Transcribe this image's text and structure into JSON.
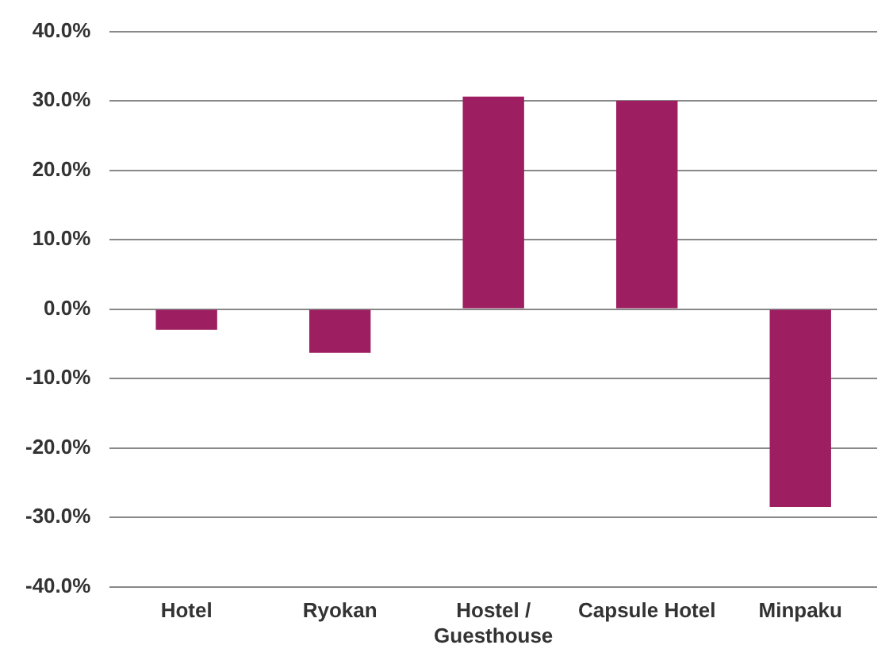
{
  "chart_data": {
    "type": "bar",
    "categories": [
      "Hotel",
      "Ryokan",
      "Hostel / Guesthouse",
      "Capsule Hotel",
      "Minpaku"
    ],
    "values": [
      -3.0,
      -6.3,
      30.6,
      30.0,
      -28.5
    ],
    "color": "#9e1f61",
    "ylim": [
      -40,
      40
    ],
    "yticks": [
      {
        "value": -40,
        "label": "-40.0%"
      },
      {
        "value": -30,
        "label": "-30.0%"
      },
      {
        "value": -20,
        "label": "-20.0%"
      },
      {
        "value": -10,
        "label": "-10.0%"
      },
      {
        "value": 0,
        "label": "0.0%"
      },
      {
        "value": 10,
        "label": "10.0%"
      },
      {
        "value": 20,
        "label": "20.0%"
      },
      {
        "value": 30,
        "label": "30.0%"
      },
      {
        "value": 40,
        "label": "40.0%"
      }
    ],
    "grid": "y"
  }
}
